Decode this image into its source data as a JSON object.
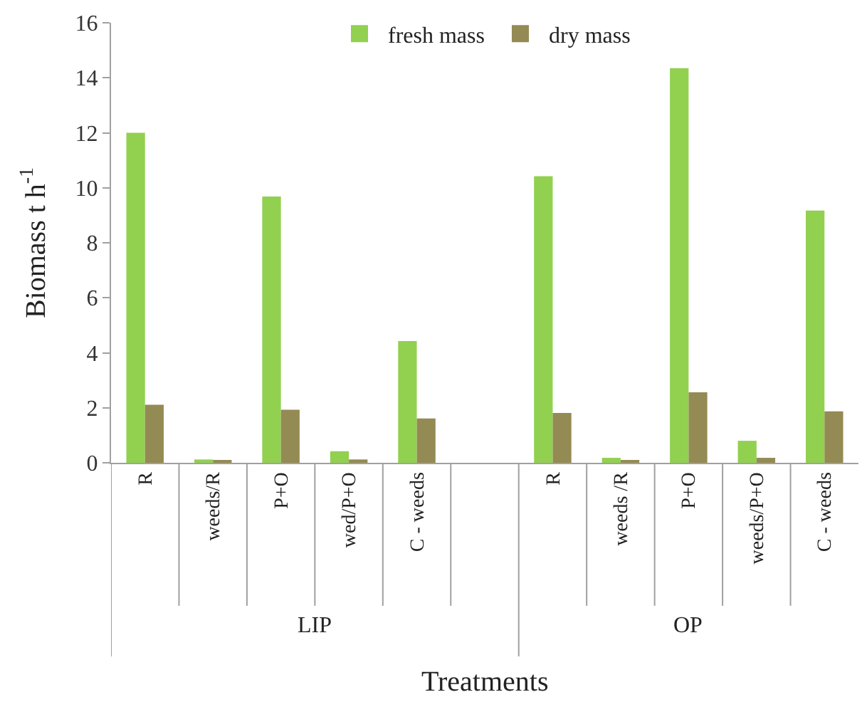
{
  "chart_data": {
    "type": "bar",
    "categories": [
      "R",
      "weeds/R",
      "P+O",
      "wed/P+O",
      "C - weeds",
      null,
      "R",
      "weeds /R",
      "P+O",
      "weeds/P+O",
      "C - weeds"
    ],
    "series": [
      {
        "name": "fresh mass",
        "color": "#92d050",
        "values": [
          12.0,
          0.12,
          9.68,
          0.42,
          4.43,
          null,
          10.42,
          0.18,
          14.35,
          0.8,
          9.17
        ]
      },
      {
        "name": "dry mass",
        "color": "#948a54",
        "values": [
          2.11,
          0.06,
          1.93,
          0.12,
          1.61,
          null,
          1.81,
          0.06,
          2.56,
          0.18,
          1.87
        ]
      }
    ],
    "xlabel": "Treatments",
    "ylabel": "Biomass t h$^{-1}$",
    "annotations": [
      "LIP",
      "OP"
    ],
    "ylim": [
      0,
      16
    ],
    "yticks": [
      0,
      2,
      4,
      6,
      8,
      10,
      12,
      14,
      16
    ],
    "legend": "top"
  }
}
